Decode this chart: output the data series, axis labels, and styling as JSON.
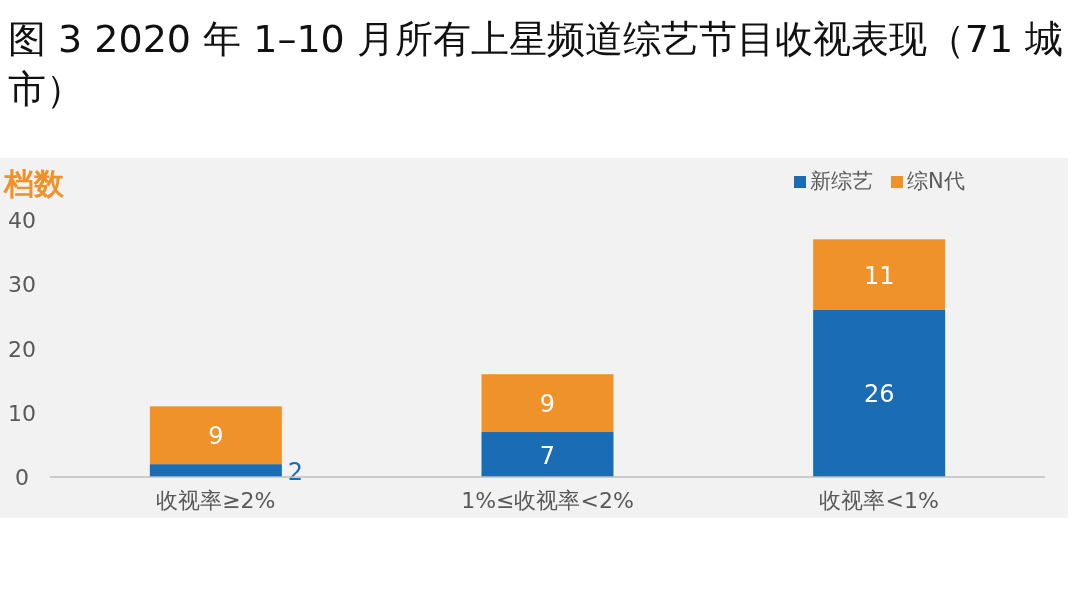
{
  "chart_data": {
    "type": "bar",
    "title": "图 3 2020 年 1–10 月所有上星频道综艺节目收视表现（71 城市）",
    "ylabel": "档数",
    "categories": [
      "收视率≥2%",
      "1%≤收视率<2%",
      "收视率<1%"
    ],
    "series": [
      {
        "name": "新综艺",
        "color": "#1a6cb5",
        "values": [
          2,
          7,
          26
        ]
      },
      {
        "name": "综N代",
        "color": "#f0922a",
        "values": [
          9,
          9,
          11
        ]
      }
    ],
    "stacked": true,
    "data_labels": true,
    "legend": "top right",
    "ylim": [
      0,
      40
    ],
    "yticks": [
      0,
      10,
      20,
      30,
      40
    ]
  }
}
